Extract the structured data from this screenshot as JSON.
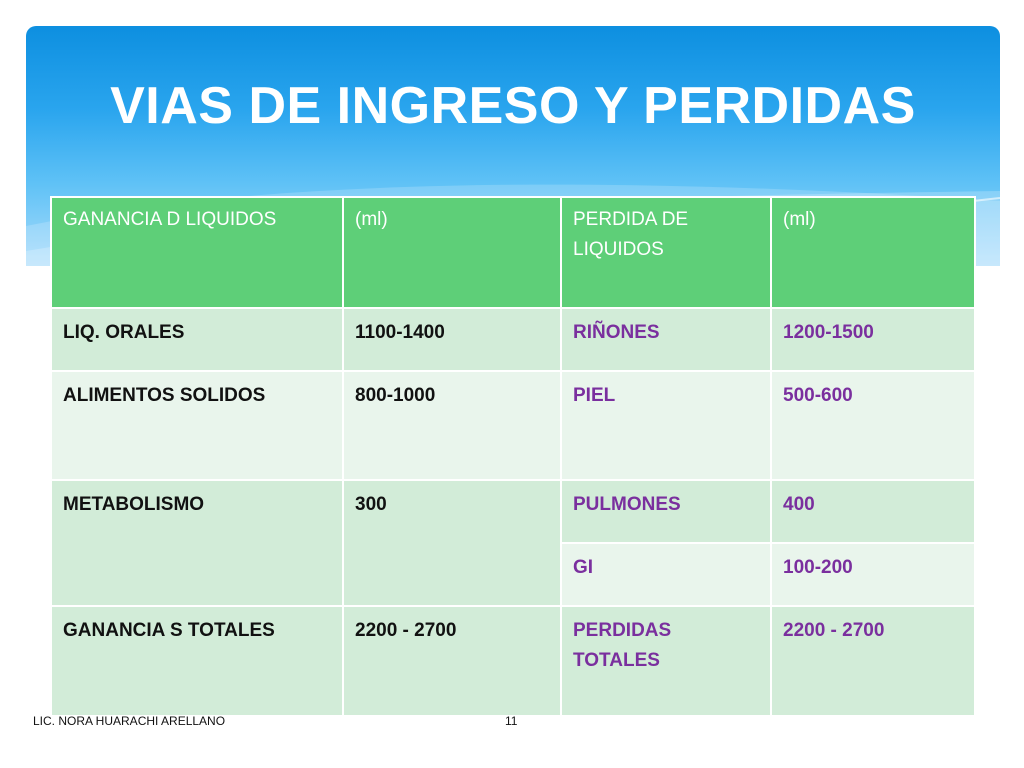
{
  "slide": {
    "title": "VIAS DE INGRESO Y PERDIDAS",
    "colors": {
      "header_top": "#0d8fe0",
      "header_bottom": "#a9dcfb",
      "table_header": "#5ecf78",
      "row_dark": "#d2ecd8",
      "row_light": "#e9f5ec",
      "loss_text": "#7a2f9e"
    }
  },
  "table": {
    "headers": [
      "GANANCIA D LIQUIDOS",
      "(ml)",
      "PERDIDA DE LIQUIDOS",
      "(ml)"
    ],
    "rows": [
      {
        "gain": "LIQ. ORALES",
        "gain_ml": "1100-1400",
        "loss": "RIÑONES",
        "loss_ml": "1200-1500"
      },
      {
        "gain": "ALIMENTOS SOLIDOS",
        "gain_ml": "800-1000",
        "loss": "PIEL",
        "loss_ml": "500-600"
      },
      {
        "gain": "METABOLISMO",
        "gain_ml": "300",
        "loss": "PULMONES",
        "loss_ml": "400"
      },
      {
        "loss": "GI",
        "loss_ml": "100-200"
      },
      {
        "gain": "GANANCIA S TOTALES",
        "gain_ml": "2200 - 2700",
        "loss": "PERDIDAS TOTALES",
        "loss_ml": "2200 - 2700"
      }
    ]
  },
  "footer": {
    "author": "LIC. NORA HUARACHI ARELLANO",
    "page_number": "11"
  }
}
